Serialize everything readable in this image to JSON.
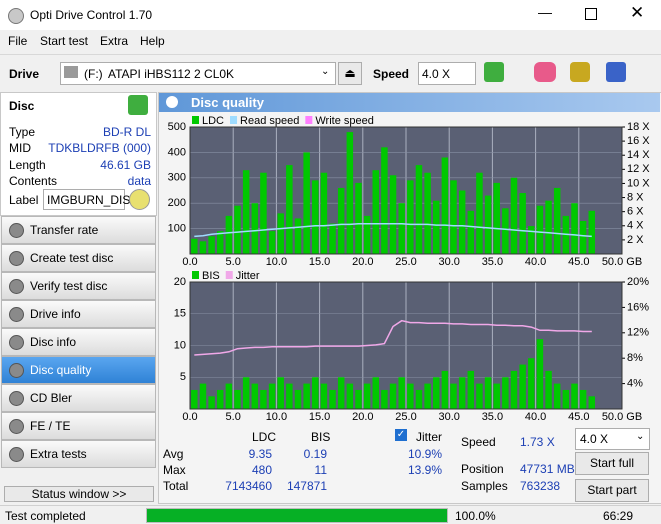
{
  "window": {
    "title": "Opti Drive Control 1.70"
  },
  "menu": [
    "File",
    "Start test",
    "Extra",
    "Help"
  ],
  "toolbar": {
    "drive_label": "Drive",
    "drive_letter": "(F:)",
    "drive_name": "ATAPI iHBS112  2 CL0K",
    "speed_label": "Speed",
    "speed_value": "4.0 X"
  },
  "disc": {
    "heading": "Disc",
    "fields": [
      [
        "Type",
        "BD-R DL"
      ],
      [
        "MID",
        "TDKBLDRFB (000)"
      ],
      [
        "Length",
        "46.61 GB"
      ],
      [
        "Contents",
        "data"
      ]
    ],
    "label_label": "Label",
    "label_value": "IMGBURN_DIS"
  },
  "nav": [
    "Transfer rate",
    "Create test disc",
    "Verify test disc",
    "Drive info",
    "Disc info",
    "Disc quality",
    "CD Bler",
    "FE / TE",
    "Extra tests"
  ],
  "status_window": "Status window >>",
  "panel_title": "Disc quality",
  "chart_data": [
    {
      "type": "bar",
      "x": [
        0.5,
        1.5,
        2.5,
        3.5,
        4.5,
        5.5,
        6.5,
        7.5,
        8.5,
        9.5,
        10.5,
        11.5,
        12.5,
        13.5,
        14.5,
        15.5,
        16.5,
        17.5,
        18.5,
        19.5,
        20.5,
        21.5,
        22.5,
        23.5,
        24.5,
        25.5,
        26.5,
        27.5,
        28.5,
        29.5,
        30.5,
        31.5,
        32.5,
        33.5,
        34.5,
        35.5,
        36.5,
        37.5,
        38.5,
        39.5,
        40.5,
        41.5,
        42.5,
        43.5,
        44.5,
        45.5,
        46.5
      ],
      "series": [
        {
          "name": "LDC",
          "type": "bar",
          "color": "#00c800",
          "values": [
            60,
            50,
            70,
            90,
            150,
            190,
            330,
            200,
            320,
            90,
            160,
            350,
            140,
            400,
            290,
            320,
            120,
            260,
            480,
            280,
            150,
            330,
            420,
            310,
            200,
            290,
            350,
            320,
            210,
            380,
            290,
            250,
            170,
            320,
            230,
            280,
            180,
            300,
            240,
            110,
            190,
            210,
            260,
            150,
            200,
            130,
            170
          ]
        },
        {
          "name": "Read speed",
          "type": "line",
          "axis": "y2",
          "color": "#9fdcff",
          "values": [
            2.5,
            2.6,
            2.8,
            2.9,
            3.0,
            3.1,
            3.2,
            3.3,
            3.4,
            3.5,
            3.6,
            3.7,
            3.8,
            3.9,
            4.0,
            4.0,
            4.1,
            4.2,
            4.2,
            4.3,
            4.3,
            4.3,
            4.3,
            4.3,
            4.3,
            4.2,
            4.2,
            4.2,
            4.1,
            4.1,
            4.0,
            4.0,
            3.9,
            3.8,
            3.7,
            3.6,
            3.5,
            3.4,
            3.3,
            3.2,
            3.1,
            3.0,
            2.9,
            2.8,
            2.7,
            2.6,
            2.5
          ]
        },
        {
          "name": "Write speed",
          "type": "line",
          "axis": "y2",
          "color": "#ff80ff",
          "values": [
            null,
            null,
            null,
            null,
            null,
            null,
            null,
            null,
            null,
            null,
            null,
            null,
            null,
            null,
            null,
            null,
            null,
            null,
            null,
            null,
            null,
            null,
            null,
            null,
            null,
            null,
            null,
            null,
            null,
            null,
            null,
            null,
            null,
            null,
            null,
            null,
            null,
            null,
            null,
            null,
            null,
            null,
            null,
            null,
            null,
            null,
            null
          ]
        }
      ],
      "xlim": [
        0,
        50
      ],
      "xticks": [
        {
          "value": 0,
          "label": "0.0"
        },
        {
          "value": 5,
          "label": "5.0"
        },
        {
          "value": 10,
          "label": "10.0"
        },
        {
          "value": 15,
          "label": "15.0"
        },
        {
          "value": 20,
          "label": "20.0"
        },
        {
          "value": 25,
          "label": "25.0"
        },
        {
          "value": 30,
          "label": "30.0"
        },
        {
          "value": 35,
          "label": "35.0"
        },
        {
          "value": 40,
          "label": "40.0"
        },
        {
          "value": 45,
          "label": "45.0"
        },
        {
          "value": 50,
          "label": "50.0 GB"
        }
      ],
      "ylim": [
        0,
        500
      ],
      "yticks": [
        100,
        200,
        300,
        400,
        500
      ],
      "y2lim": [
        0,
        18
      ],
      "y2ticks": [
        {
          "value": 2,
          "label": "2 X"
        },
        {
          "value": 4,
          "label": "4 X"
        },
        {
          "value": 6,
          "label": "6 X"
        },
        {
          "value": 8,
          "label": "8 X"
        },
        {
          "value": 10,
          "label": "10 X"
        },
        {
          "value": 12,
          "label": "12 X"
        },
        {
          "value": 14,
          "label": "14 X"
        },
        {
          "value": 16,
          "label": "16 X"
        },
        {
          "value": 18,
          "label": "18 X"
        }
      ],
      "grid": true
    },
    {
      "type": "bar",
      "x": [
        0.5,
        1.5,
        2.5,
        3.5,
        4.5,
        5.5,
        6.5,
        7.5,
        8.5,
        9.5,
        10.5,
        11.5,
        12.5,
        13.5,
        14.5,
        15.5,
        16.5,
        17.5,
        18.5,
        19.5,
        20.5,
        21.5,
        22.5,
        23.5,
        24.5,
        25.5,
        26.5,
        27.5,
        28.5,
        29.5,
        30.5,
        31.5,
        32.5,
        33.5,
        34.5,
        35.5,
        36.5,
        37.5,
        38.5,
        39.5,
        40.5,
        41.5,
        42.5,
        43.5,
        44.5,
        45.5,
        46.5
      ],
      "series": [
        {
          "name": "BIS",
          "type": "bar",
          "color": "#00c800",
          "values": [
            3,
            4,
            2,
            3,
            4,
            3,
            5,
            4,
            3,
            4,
            5,
            4,
            3,
            4,
            5,
            4,
            3,
            5,
            4,
            3,
            4,
            5,
            3,
            4,
            5,
            4,
            3,
            4,
            5,
            6,
            4,
            5,
            6,
            4,
            5,
            4,
            5,
            6,
            7,
            8,
            11,
            6,
            4,
            3,
            4,
            3,
            2
          ]
        },
        {
          "name": "Jitter",
          "type": "line",
          "axis": "y2",
          "color": "#f0a8e8",
          "values": [
            8.5,
            8.6,
            8.7,
            8.8,
            9.0,
            9.5,
            9.6,
            9.7,
            9.7,
            9.8,
            9.8,
            9.8,
            9.8,
            9.8,
            9.9,
            9.9,
            9.9,
            9.9,
            9.9,
            9.9,
            10.0,
            10.1,
            10.3,
            13.0,
            13.9,
            13.6,
            13.6,
            13.5,
            13.5,
            13.5,
            13.4,
            13.4,
            13.3,
            13.3,
            13.3,
            13.2,
            13.2,
            13.1,
            13.1,
            12.9,
            12.4,
            12.4,
            12.3,
            12.3,
            12.3,
            12.2,
            12.2
          ]
        }
      ],
      "xlim": [
        0,
        50
      ],
      "xticks": [
        {
          "value": 0,
          "label": "0.0"
        },
        {
          "value": 5,
          "label": "5.0"
        },
        {
          "value": 10,
          "label": "10.0"
        },
        {
          "value": 15,
          "label": "15.0"
        },
        {
          "value": 20,
          "label": "20.0"
        },
        {
          "value": 25,
          "label": "25.0"
        },
        {
          "value": 30,
          "label": "30.0"
        },
        {
          "value": 35,
          "label": "35.0"
        },
        {
          "value": 40,
          "label": "40.0"
        },
        {
          "value": 45,
          "label": "45.0"
        },
        {
          "value": 50,
          "label": "50.0 GB"
        }
      ],
      "ylim": [
        0,
        20
      ],
      "yticks": [
        5,
        10,
        15,
        20
      ],
      "y2lim": [
        0,
        20
      ],
      "y2ticks": [
        {
          "value": 4,
          "label": "4%"
        },
        {
          "value": 8,
          "label": "8%"
        },
        {
          "value": 12,
          "label": "12%"
        },
        {
          "value": 16,
          "label": "16%"
        },
        {
          "value": 20,
          "label": "20%"
        }
      ],
      "grid": true
    }
  ],
  "stats": {
    "headers": [
      "LDC",
      "BIS"
    ],
    "jitter_label": "Jitter",
    "rows": [
      {
        "label": "Avg",
        "values": [
          "9.35",
          "0.19",
          "10.9%"
        ]
      },
      {
        "label": "Max",
        "values": [
          "480",
          "11",
          "13.9%"
        ]
      },
      {
        "label": "Total",
        "values": [
          "7143460",
          "147871"
        ]
      }
    ],
    "speed_label": "Speed",
    "speed_value": "1.73 X",
    "speed_select": "4.0 X",
    "start_full": "Start full",
    "position_label": "Position",
    "position_value": "47731 MB",
    "samples_label": "Samples",
    "samples_value": "763238",
    "start_part": "Start part"
  },
  "status": {
    "text": "Test completed",
    "progress": "100.0%",
    "time": "66:29"
  }
}
